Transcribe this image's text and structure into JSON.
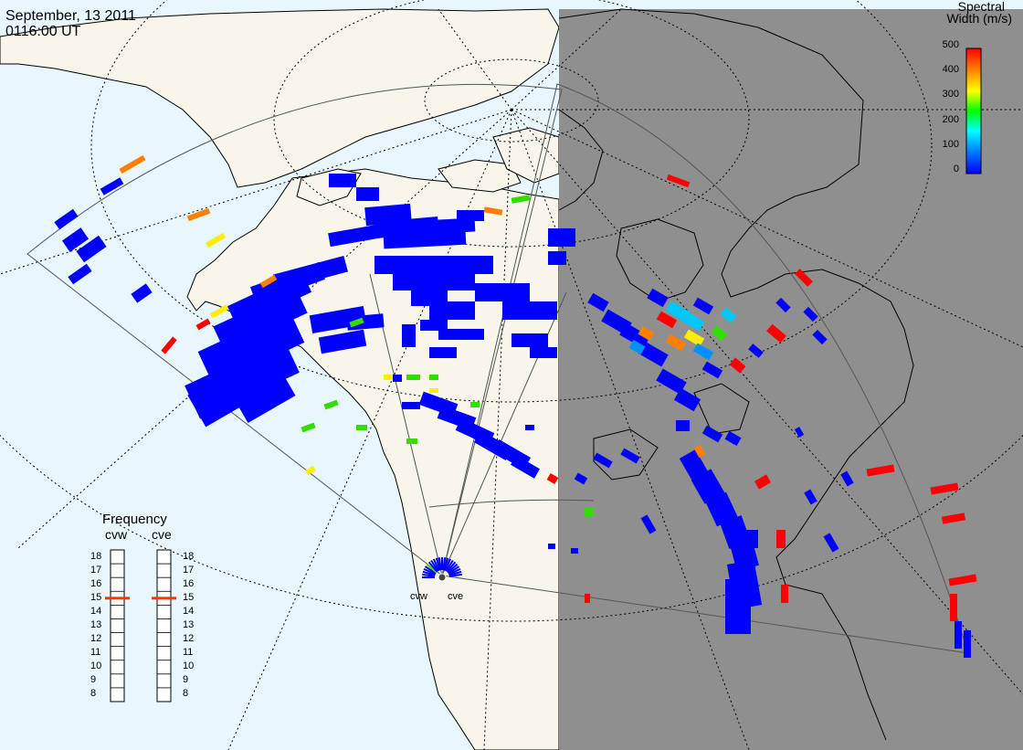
{
  "header": {
    "date": "September, 13 2011",
    "time": "0116:00 UT"
  },
  "colorbar": {
    "title_line1": "Spectral",
    "title_line2": "Width (m/s)",
    "ticks": [
      "500",
      "400",
      "300",
      "200",
      "100",
      "0"
    ],
    "range": [
      0,
      500
    ],
    "colors": [
      "#0000ff",
      "#0080ff",
      "#00ffff",
      "#00ff00",
      "#ffff00",
      "#ff8000",
      "#ff0000"
    ]
  },
  "frequency_panel": {
    "title": "Frequency",
    "radars": [
      {
        "name": "cvw",
        "value": 15
      },
      {
        "name": "cve",
        "value": 15
      }
    ],
    "scale": [
      "18",
      "17",
      "16",
      "15",
      "14",
      "13",
      "12",
      "11",
      "10",
      "9",
      "8"
    ]
  },
  "sites": [
    {
      "name": "cvw"
    },
    {
      "name": "cve"
    }
  ],
  "colors": {
    "ocean": "#e8f6fd",
    "land": "#f8f6ea",
    "night": "#8f8f8f",
    "marker": "#ff3300"
  }
}
